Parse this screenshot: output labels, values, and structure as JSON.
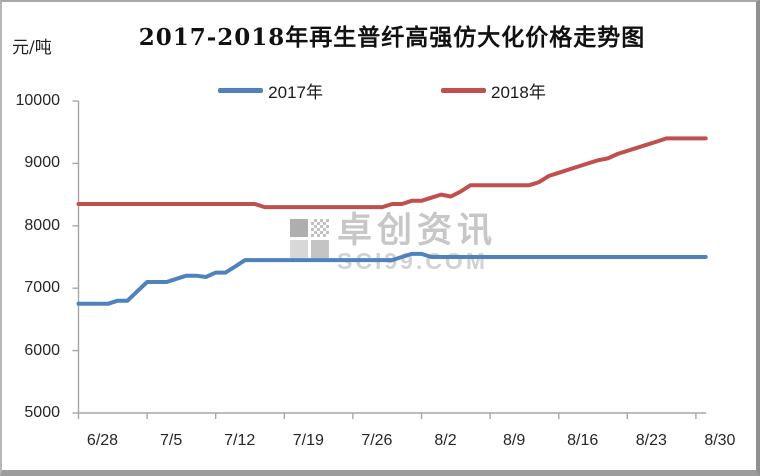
{
  "watermark": {
    "text": "卓创资讯",
    "subtext": "SCI99.COM"
  },
  "chart_data": {
    "type": "line",
    "title": "2017-2018年再生普纤高强仿大化价格走势图",
    "xlabel": "",
    "ylabel": "元/吨",
    "ylim": [
      5000,
      10000
    ],
    "y_ticks": [
      5000,
      6000,
      7000,
      8000,
      9000,
      10000
    ],
    "x_tick_labels": [
      "6/28",
      "7/5",
      "7/12",
      "7/19",
      "7/26",
      "8/2",
      "8/9",
      "8/16",
      "8/23",
      "8/30"
    ],
    "grid": false,
    "legend_position": "top",
    "x": [
      "6/28",
      "6/29",
      "6/30",
      "7/1",
      "7/2",
      "7/3",
      "7/4",
      "7/5",
      "7/6",
      "7/7",
      "7/8",
      "7/9",
      "7/10",
      "7/11",
      "7/12",
      "7/13",
      "7/14",
      "7/15",
      "7/16",
      "7/17",
      "7/18",
      "7/19",
      "7/20",
      "7/21",
      "7/22",
      "7/23",
      "7/24",
      "7/25",
      "7/26",
      "7/27",
      "7/28",
      "7/29",
      "7/30",
      "7/31",
      "8/1",
      "8/2",
      "8/3",
      "8/4",
      "8/5",
      "8/6",
      "8/7",
      "8/8",
      "8/9",
      "8/10",
      "8/11",
      "8/12",
      "8/13",
      "8/14",
      "8/15",
      "8/16",
      "8/17",
      "8/18",
      "8/19",
      "8/20",
      "8/21",
      "8/22",
      "8/23",
      "8/24",
      "8/25",
      "8/26",
      "8/27",
      "8/28",
      "8/29",
      "8/30",
      "8/31"
    ],
    "series": [
      {
        "name": "2017年",
        "color": "#4F81BD",
        "values": [
          6750,
          6750,
          6750,
          6750,
          6800,
          6800,
          6950,
          7100,
          7100,
          7100,
          7150,
          7200,
          7200,
          7180,
          7250,
          7250,
          7350,
          7450,
          7450,
          7450,
          7450,
          7450,
          7450,
          7450,
          7450,
          7450,
          7450,
          7450,
          7450,
          7450,
          7450,
          7450,
          7450,
          7500,
          7550,
          7550,
          7500,
          7500,
          7500,
          7500,
          7500,
          7500,
          7500,
          7500,
          7500,
          7500,
          7500,
          7500,
          7500,
          7500,
          7500,
          7500,
          7500,
          7500,
          7500,
          7500,
          7500,
          7500,
          7500,
          7500,
          7500,
          7500,
          7500,
          7500,
          7500
        ]
      },
      {
        "name": "2018年",
        "color": "#C0504D",
        "values": [
          8350,
          8350,
          8350,
          8350,
          8350,
          8350,
          8350,
          8350,
          8350,
          8350,
          8350,
          8350,
          8350,
          8350,
          8350,
          8350,
          8350,
          8350,
          8350,
          8300,
          8300,
          8300,
          8300,
          8300,
          8300,
          8300,
          8300,
          8300,
          8300,
          8300,
          8300,
          8300,
          8350,
          8350,
          8400,
          8400,
          8450,
          8500,
          8470,
          8550,
          8650,
          8650,
          8650,
          8650,
          8650,
          8650,
          8650,
          8700,
          8800,
          8850,
          8900,
          8950,
          9000,
          9050,
          9080,
          9150,
          9200,
          9250,
          9300,
          9350,
          9400,
          9400,
          9400,
          9400,
          9400
        ]
      }
    ]
  }
}
